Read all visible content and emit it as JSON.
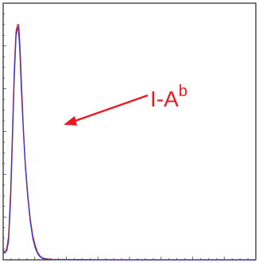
{
  "chart_data": {
    "type": "line",
    "title": "",
    "xlabel": "",
    "ylabel": "",
    "x_range": [
      0,
      1024
    ],
    "y_range": [
      0,
      100
    ],
    "grid": false,
    "legend": "none",
    "annotation": {
      "text_main": "I-A",
      "text_sup": "b"
    },
    "series": [
      {
        "color": "#e8191f",
        "points": [
          [
            0,
            4
          ],
          [
            8,
            3
          ],
          [
            15,
            5
          ],
          [
            22,
            10
          ],
          [
            30,
            28
          ],
          [
            38,
            55
          ],
          [
            45,
            80
          ],
          [
            52,
            96
          ],
          [
            58,
            99
          ],
          [
            63,
            99
          ],
          [
            68,
            90
          ],
          [
            75,
            72
          ],
          [
            82,
            55
          ],
          [
            90,
            40
          ],
          [
            100,
            27
          ],
          [
            110,
            17
          ],
          [
            120,
            10
          ],
          [
            130,
            6
          ],
          [
            140,
            3
          ],
          [
            150,
            1.5
          ],
          [
            160,
            0.8
          ],
          [
            175,
            0.4
          ],
          [
            200,
            0.2
          ],
          [
            300,
            0.1
          ],
          [
            500,
            0
          ],
          [
            1024,
            0
          ]
        ]
      },
      {
        "color": "#3b35c4",
        "points": [
          [
            0,
            3
          ],
          [
            8,
            3
          ],
          [
            15,
            4
          ],
          [
            22,
            8
          ],
          [
            30,
            25
          ],
          [
            38,
            52
          ],
          [
            45,
            77
          ],
          [
            52,
            94
          ],
          [
            57,
            97
          ],
          [
            61,
            98
          ],
          [
            67,
            89
          ],
          [
            74,
            71
          ],
          [
            82,
            54
          ],
          [
            90,
            39
          ],
          [
            100,
            26
          ],
          [
            110,
            16
          ],
          [
            120,
            9
          ],
          [
            130,
            5
          ],
          [
            140,
            2.5
          ],
          [
            150,
            1.2
          ],
          [
            160,
            0.6
          ],
          [
            175,
            0.3
          ],
          [
            200,
            0.1
          ],
          [
            300,
            0
          ],
          [
            500,
            0
          ],
          [
            1024,
            0
          ]
        ]
      }
    ]
  }
}
